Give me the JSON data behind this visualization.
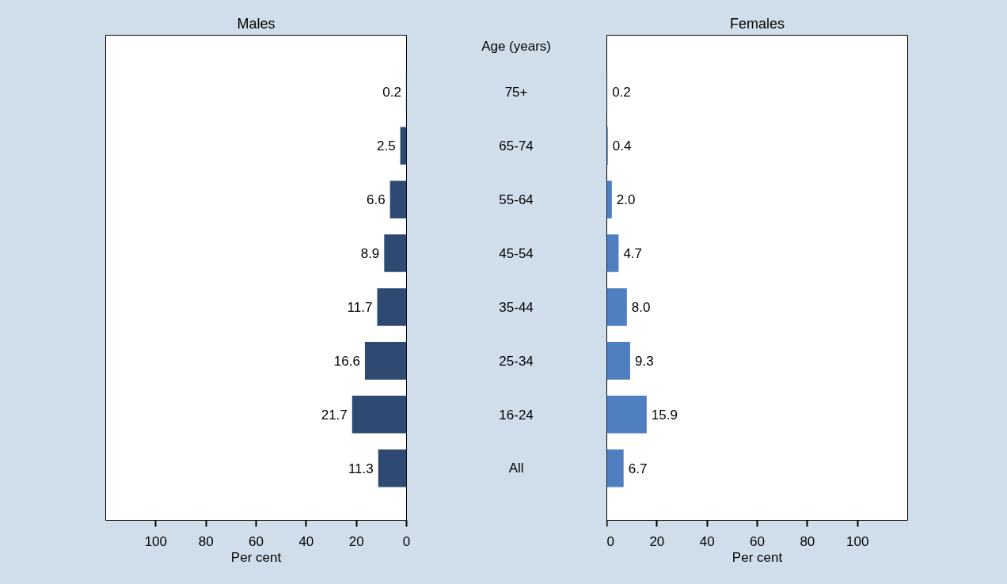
{
  "chart_data": [
    {
      "type": "bar",
      "orientation": "horizontal",
      "title": "Males",
      "xlabel": "Per cent",
      "ylabel": "Age (years)",
      "categories": [
        "75+",
        "65-74",
        "55-64",
        "45-54",
        "35-44",
        "25-34",
        "16-24",
        "All"
      ],
      "values": [
        0.2,
        2.5,
        6.6,
        8.9,
        11.7,
        16.6,
        21.7,
        11.3
      ],
      "color": "#2e4a72",
      "xlim": [
        120,
        0
      ],
      "xticks": [
        0,
        20,
        40,
        60,
        80,
        100
      ],
      "data_labels": true
    },
    {
      "type": "bar",
      "orientation": "horizontal",
      "title": "Females",
      "xlabel": "Per cent",
      "categories": [
        null,
        null,
        null,
        null,
        null,
        null,
        null,
        null
      ],
      "values": [
        0.2,
        0.4,
        2.0,
        4.7,
        8.0,
        9.3,
        15.9,
        6.7
      ],
      "value_labels": [
        "0.2",
        "0.4",
        "2.0",
        "4.7",
        "8.0",
        "9.3",
        "15.9",
        "6.7"
      ],
      "color": "#4f7fc1",
      "xlim": [
        0,
        120
      ],
      "xticks": [
        0,
        20,
        40,
        60,
        80,
        100
      ],
      "tick_labels": "x"
    }
  ]
}
